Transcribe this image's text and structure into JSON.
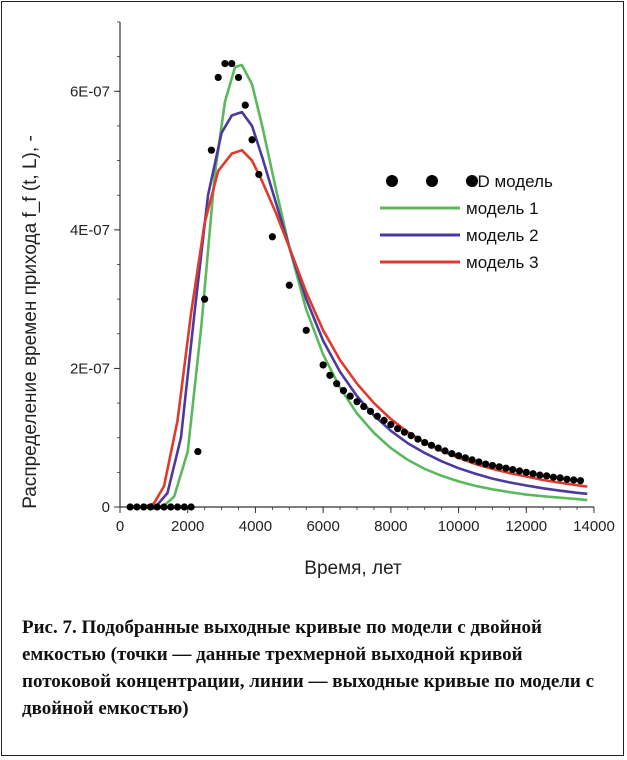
{
  "caption": "Рис. 7. Подобранные выходные кривые по модели с двойной емкостью (точки — данные трехмерной выходной кривой потоковой концентрации, линии — выходные кривые по модели с двойной емкостью)",
  "chart_data": {
    "type": "line",
    "xlabel": "Время, лет",
    "ylabel": "Распределение времен прихода f_f (t, L), -",
    "xlim": [
      0,
      14000
    ],
    "ylim": [
      0,
      7e-07
    ],
    "x_ticks": [
      0,
      2000,
      4000,
      6000,
      8000,
      10000,
      12000,
      14000
    ],
    "x_tick_labels": [
      "0",
      "2000",
      "4000",
      "6000",
      "8000",
      "10000",
      "12000",
      "14000"
    ],
    "y_ticks": [
      0,
      2e-07,
      4e-07,
      6e-07
    ],
    "y_tick_labels": [
      "0",
      "2E-07",
      "4E-07",
      "6E-07"
    ],
    "grid": false,
    "legend_position": "right-middle",
    "legend_marker_symbol": "●",
    "series": [
      {
        "name": "3D модель",
        "style": "points",
        "color": "#000000",
        "x": [
          300,
          500,
          700,
          900,
          1100,
          1300,
          1500,
          1700,
          1900,
          2100,
          2300,
          2500,
          2700,
          2900,
          3100,
          3300,
          3500,
          3700,
          3900,
          4100,
          4500,
          5000,
          5500,
          6000,
          6200,
          6400,
          6600,
          6800,
          7000,
          7200,
          7400,
          7600,
          7800,
          8000,
          8200,
          8400,
          8600,
          8800,
          9000,
          9200,
          9400,
          9600,
          9800,
          10000,
          10200,
          10400,
          10600,
          10800,
          11000,
          11200,
          11400,
          11600,
          11800,
          12000,
          12200,
          12400,
          12600,
          12800,
          13000,
          13200,
          13400,
          13600
        ],
        "values": [
          0,
          0,
          0,
          0,
          0,
          0,
          0,
          0,
          0,
          0,
          8e-08,
          3e-07,
          5.15e-07,
          6.2e-07,
          6.4e-07,
          6.4e-07,
          6.2e-07,
          5.8e-07,
          5.3e-07,
          4.8e-07,
          3.9e-07,
          3.2e-07,
          2.55e-07,
          2.05e-07,
          1.9e-07,
          1.78e-07,
          1.68e-07,
          1.6e-07,
          1.52e-07,
          1.45e-07,
          1.38e-07,
          1.31e-07,
          1.25e-07,
          1.19e-07,
          1.13e-07,
          1.08e-07,
          1.03e-07,
          9.8e-08,
          9.3e-08,
          8.9e-08,
          8.5e-08,
          8.1e-08,
          7.7e-08,
          7.4e-08,
          7.1e-08,
          6.8e-08,
          6.5e-08,
          6.2e-08,
          6e-08,
          5.8e-08,
          5.6e-08,
          5.4e-08,
          5.2e-08,
          5e-08,
          4.8e-08,
          4.6e-08,
          4.5e-08,
          4.3e-08,
          4.2e-08,
          4e-08,
          3.9e-08,
          3.8e-08
        ]
      },
      {
        "name": "модель 1",
        "style": "line",
        "color": "#5cb85c",
        "x": [
          1000,
          1300,
          1600,
          2000,
          2400,
          2800,
          3100,
          3400,
          3600,
          3900,
          4200,
          4600,
          5000,
          5500,
          6000,
          6500,
          7000,
          7500,
          8000,
          8500,
          9000,
          9500,
          10000,
          10500,
          11000,
          11500,
          12000,
          12500,
          13000,
          13500,
          13800
        ],
        "values": [
          0,
          2e-09,
          1.5e-08,
          8e-08,
          2.6e-07,
          4.8e-07,
          5.85e-07,
          6.35e-07,
          6.38e-07,
          6.1e-07,
          5.5e-07,
          4.6e-07,
          3.75e-07,
          2.85e-07,
          2.2e-07,
          1.72e-07,
          1.35e-07,
          1.07e-07,
          8.5e-08,
          6.8e-08,
          5.5e-08,
          4.5e-08,
          3.7e-08,
          3.05e-08,
          2.55e-08,
          2.15e-08,
          1.8e-08,
          1.55e-08,
          1.35e-08,
          1.15e-08,
          1e-08
        ]
      },
      {
        "name": "модель 2",
        "style": "line",
        "color": "#4a3aa0",
        "x": [
          800,
          1100,
          1400,
          1800,
          2200,
          2600,
          3000,
          3300,
          3600,
          3900,
          4200,
          4600,
          5000,
          5500,
          6000,
          6500,
          7000,
          7500,
          8000,
          8500,
          9000,
          9500,
          10000,
          10500,
          11000,
          11500,
          12000,
          12500,
          13000,
          13500,
          13800
        ],
        "values": [
          0,
          3e-09,
          2e-08,
          1e-07,
          2.8e-07,
          4.5e-07,
          5.4e-07,
          5.65e-07,
          5.7e-07,
          5.5e-07,
          5.05e-07,
          4.4e-07,
          3.75e-07,
          3e-07,
          2.4e-07,
          1.95e-07,
          1.6e-07,
          1.32e-07,
          1.1e-07,
          9.2e-08,
          7.8e-08,
          6.6e-08,
          5.6e-08,
          4.8e-08,
          4.1e-08,
          3.55e-08,
          3.1e-08,
          2.7e-08,
          2.35e-08,
          2.05e-08,
          1.9e-08
        ]
      },
      {
        "name": "модель 3",
        "style": "line",
        "color": "#e03a2c",
        "x": [
          700,
          1000,
          1300,
          1700,
          2100,
          2500,
          2900,
          3300,
          3600,
          3900,
          4200,
          4600,
          5000,
          5500,
          6000,
          6500,
          7000,
          7500,
          8000,
          8500,
          9000,
          9500,
          10000,
          10500,
          11000,
          11500,
          12000,
          12500,
          13000,
          13500,
          13800
        ],
        "values": [
          0,
          5e-09,
          3e-08,
          1.25e-07,
          2.8e-07,
          4.1e-07,
          4.85e-07,
          5.1e-07,
          5.15e-07,
          5e-07,
          4.7e-07,
          4.25e-07,
          3.75e-07,
          3.1e-07,
          2.55e-07,
          2.12e-07,
          1.78e-07,
          1.5e-07,
          1.27e-07,
          1.08e-07,
          9.3e-08,
          8.1e-08,
          7.1e-08,
          6.2e-08,
          5.5e-08,
          4.9e-08,
          4.4e-08,
          3.9e-08,
          3.5e-08,
          3.15e-08,
          2.95e-08
        ]
      }
    ]
  }
}
